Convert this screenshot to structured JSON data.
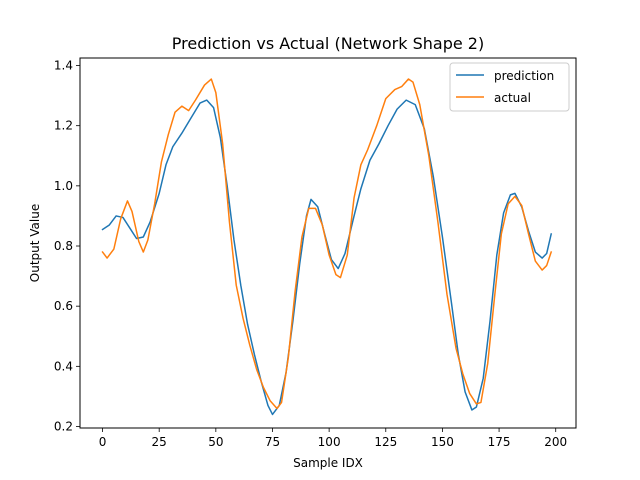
{
  "chart_data": {
    "type": "line",
    "title": "Prediction vs Actual (Network Shape 2)",
    "xlabel": "Sample IDX",
    "ylabel": "Output Value",
    "xlim": [
      -9.95,
      208.95
    ],
    "ylim": [
      0.195,
      1.425
    ],
    "x_ticks": [
      0,
      25,
      50,
      75,
      100,
      125,
      150,
      175,
      200
    ],
    "y_ticks": [
      0.2,
      0.4,
      0.6,
      0.8,
      1.0,
      1.2,
      1.4
    ],
    "y_tick_labels": [
      "0.2",
      "0.4",
      "0.6",
      "0.8",
      "1.0",
      "1.2",
      "1.4"
    ],
    "grid": false,
    "legend_position": "upper-right",
    "colors": {
      "prediction": "#1f77b4",
      "actual": "#ff7f0e"
    },
    "series": [
      {
        "name": "prediction",
        "points": [
          [
            0,
            0.855
          ],
          [
            3,
            0.87
          ],
          [
            6,
            0.9
          ],
          [
            9,
            0.895
          ],
          [
            12,
            0.86
          ],
          [
            15,
            0.825
          ],
          [
            18,
            0.83
          ],
          [
            21,
            0.88
          ],
          [
            25,
            0.975
          ],
          [
            28,
            1.07
          ],
          [
            31,
            1.13
          ],
          [
            35,
            1.175
          ],
          [
            39,
            1.225
          ],
          [
            43,
            1.275
          ],
          [
            46,
            1.285
          ],
          [
            49,
            1.26
          ],
          [
            52,
            1.16
          ],
          [
            55,
            1.0
          ],
          [
            58,
            0.82
          ],
          [
            61,
            0.67
          ],
          [
            64,
            0.54
          ],
          [
            67,
            0.44
          ],
          [
            70,
            0.35
          ],
          [
            73,
            0.27
          ],
          [
            75,
            0.24
          ],
          [
            78,
            0.27
          ],
          [
            81,
            0.38
          ],
          [
            84,
            0.55
          ],
          [
            87,
            0.74
          ],
          [
            90,
            0.9
          ],
          [
            92,
            0.955
          ],
          [
            95,
            0.93
          ],
          [
            98,
            0.84
          ],
          [
            101,
            0.755
          ],
          [
            104,
            0.725
          ],
          [
            107,
            0.775
          ],
          [
            111,
            0.9
          ],
          [
            114,
            0.99
          ],
          [
            118,
            1.085
          ],
          [
            122,
            1.14
          ],
          [
            126,
            1.2
          ],
          [
            130,
            1.255
          ],
          [
            134,
            1.285
          ],
          [
            138,
            1.27
          ],
          [
            142,
            1.19
          ],
          [
            146,
            1.03
          ],
          [
            150,
            0.83
          ],
          [
            154,
            0.61
          ],
          [
            157,
            0.44
          ],
          [
            160,
            0.315
          ],
          [
            163,
            0.255
          ],
          [
            165,
            0.265
          ],
          [
            168,
            0.36
          ],
          [
            171,
            0.55
          ],
          [
            174,
            0.77
          ],
          [
            177,
            0.91
          ],
          [
            180,
            0.97
          ],
          [
            182,
            0.975
          ],
          [
            185,
            0.93
          ],
          [
            188,
            0.85
          ],
          [
            191,
            0.78
          ],
          [
            194,
            0.76
          ],
          [
            196,
            0.775
          ],
          [
            198,
            0.84
          ]
        ]
      },
      {
        "name": "actual",
        "points": [
          [
            0,
            0.78
          ],
          [
            2,
            0.76
          ],
          [
            5,
            0.79
          ],
          [
            8,
            0.89
          ],
          [
            11,
            0.95
          ],
          [
            13,
            0.915
          ],
          [
            16,
            0.815
          ],
          [
            18,
            0.78
          ],
          [
            20,
            0.82
          ],
          [
            23,
            0.94
          ],
          [
            26,
            1.08
          ],
          [
            29,
            1.17
          ],
          [
            32,
            1.245
          ],
          [
            35,
            1.265
          ],
          [
            38,
            1.25
          ],
          [
            41,
            1.285
          ],
          [
            45,
            1.335
          ],
          [
            48,
            1.355
          ],
          [
            50,
            1.31
          ],
          [
            53,
            1.14
          ],
          [
            56,
            0.88
          ],
          [
            59,
            0.67
          ],
          [
            62,
            0.56
          ],
          [
            65,
            0.47
          ],
          [
            68,
            0.39
          ],
          [
            71,
            0.33
          ],
          [
            74,
            0.285
          ],
          [
            77,
            0.26
          ],
          [
            79,
            0.28
          ],
          [
            82,
            0.43
          ],
          [
            85,
            0.65
          ],
          [
            88,
            0.83
          ],
          [
            91,
            0.925
          ],
          [
            94,
            0.925
          ],
          [
            97,
            0.87
          ],
          [
            100,
            0.77
          ],
          [
            103,
            0.705
          ],
          [
            105,
            0.695
          ],
          [
            108,
            0.77
          ],
          [
            111,
            0.96
          ],
          [
            114,
            1.07
          ],
          [
            117,
            1.12
          ],
          [
            121,
            1.2
          ],
          [
            125,
            1.29
          ],
          [
            129,
            1.32
          ],
          [
            132,
            1.33
          ],
          [
            135,
            1.355
          ],
          [
            137,
            1.345
          ],
          [
            140,
            1.27
          ],
          [
            144,
            1.1
          ],
          [
            148,
            0.88
          ],
          [
            152,
            0.64
          ],
          [
            156,
            0.46
          ],
          [
            159,
            0.375
          ],
          [
            162,
            0.31
          ],
          [
            165,
            0.275
          ],
          [
            167,
            0.28
          ],
          [
            170,
            0.41
          ],
          [
            173,
            0.63
          ],
          [
            176,
            0.84
          ],
          [
            179,
            0.94
          ],
          [
            182,
            0.965
          ],
          [
            185,
            0.935
          ],
          [
            188,
            0.84
          ],
          [
            191,
            0.75
          ],
          [
            194,
            0.72
          ],
          [
            196,
            0.735
          ],
          [
            198,
            0.78
          ]
        ]
      }
    ]
  }
}
